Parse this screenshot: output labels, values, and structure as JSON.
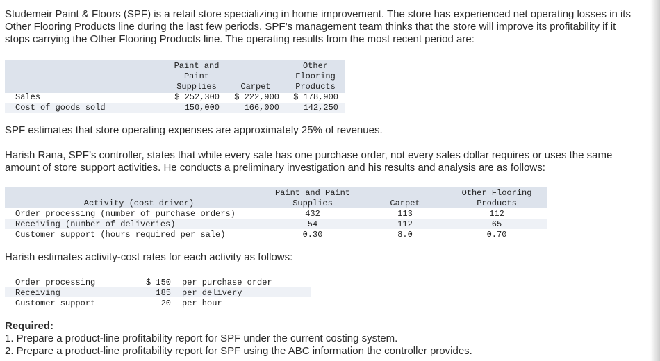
{
  "intro": {
    "line1": "Studemeir Paint & Floors (SPF) is a retail store specializing in home improvement. The store has experienced net operating losses in its",
    "line2": "Other Flooring Products line during the last few periods. SPF’s management team thinks that the store will improve its profitability if it",
    "line3": "stops carrying the Other Flooring Products line. The operating results from the most recent period are:"
  },
  "ops_table": {
    "headers": {
      "paint": [
        "Paint and",
        "Paint",
        "Supplies"
      ],
      "carpet": [
        "Carpet"
      ],
      "other": [
        "Other",
        "Flooring",
        "Products"
      ]
    },
    "rows": [
      {
        "label": "Sales",
        "paint": "$ 252,300",
        "carpet": "$ 222,900",
        "other": "$ 178,900"
      },
      {
        "label": "Cost of goods sold",
        "paint": "150,000",
        "carpet": "166,000",
        "other": "142,250"
      }
    ]
  },
  "opex_note": "SPF estimates that store operating expenses are approximately 25% of revenues.",
  "harish": {
    "line1": "Harish Rana, SPF’s controller, states that while every sale has one purchase order, not every sales dollar requires or uses the same",
    "line2": "amount of store support activities. He conducts a preliminary investigation and his results and analysis are as follows:"
  },
  "activity_table": {
    "header_activity": "Activity (cost driver)",
    "header_paint": [
      "Paint and Paint",
      "Supplies"
    ],
    "header_carpet": "Carpet",
    "header_other": [
      "Other Flooring",
      "Products"
    ],
    "rows": [
      {
        "label": "Order processing (number of purchase orders)",
        "paint": "432",
        "carpet": "113",
        "other": "112"
      },
      {
        "label": "Receiving (number of deliveries)",
        "paint": "54",
        "carpet": "112",
        "other": "65"
      },
      {
        "label": "Customer support (hours required per sale)",
        "paint": "0.30",
        "carpet": "8.0",
        "other": "0.70"
      }
    ]
  },
  "rates_intro": "Harish estimates activity-cost rates for each activity as follows:",
  "rates_table": {
    "rows": [
      {
        "label": "Order processing",
        "amount": "$ 150",
        "unit": "per purchase order"
      },
      {
        "label": "Receiving",
        "amount": "185",
        "unit": "per delivery"
      },
      {
        "label": "Customer support",
        "amount": "20",
        "unit": "per hour"
      }
    ]
  },
  "required": {
    "heading": "Required:",
    "item1": "1. Prepare a product-line profitability report for SPF under the current costing system.",
    "item2": "2. Prepare a product-line profitability report for SPF using the ABC information the controller provides."
  }
}
